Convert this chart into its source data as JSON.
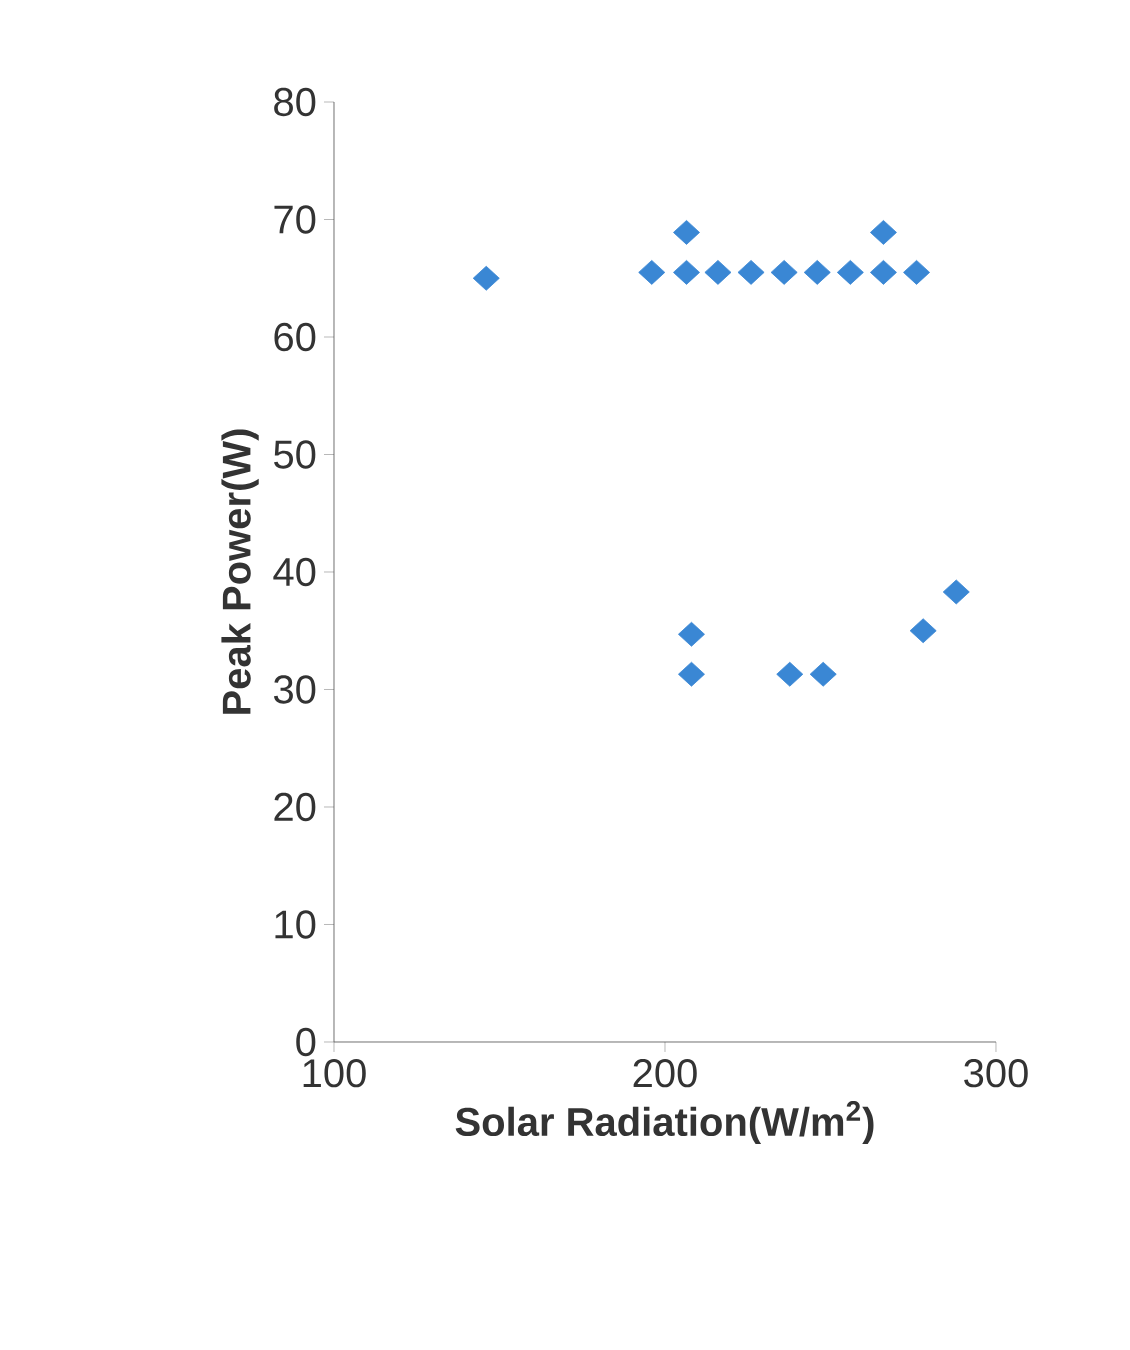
{
  "chart_data": {
    "type": "scatter",
    "xlabel": "Solar Radiation(W/m$^{2}$)",
    "ylabel": "Peak Power(W)",
    "xlim": [
      100,
      300
    ],
    "ylim": [
      0,
      80
    ],
    "xticks": [
      100,
      200,
      300
    ],
    "yticks": [
      0,
      10,
      20,
      30,
      40,
      50,
      60,
      70,
      80
    ],
    "marker": "diamond",
    "grid": false,
    "series": [
      {
        "color": "#3a87d4",
        "x": [
          146,
          196,
          206.5,
          216,
          226,
          236,
          246,
          256,
          266,
          276,
          206.5,
          266,
          208,
          208,
          237.7,
          247.8,
          278,
          288
        ],
        "values": [
          65,
          65.5,
          65.5,
          65.5,
          65.5,
          65.5,
          65.5,
          65.5,
          65.5,
          65.5,
          68.9,
          68.9,
          34.7,
          31.3,
          31.3,
          31.3,
          35,
          38.3
        ]
      }
    ]
  }
}
